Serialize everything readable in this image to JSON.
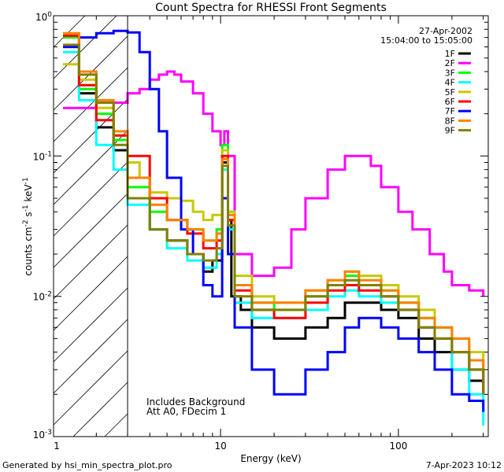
{
  "chart_data": {
    "type": "line",
    "title": "Count Spectra for RHESSI Front Segments",
    "xlabel": "Energy (keV)",
    "ylabel_base": "counts cm",
    "ylabel_exp1": "-2",
    "ylabel_mid": " s",
    "ylabel_exp2": "-1",
    "ylabel_end": " keV",
    "ylabel_exp3": "-1",
    "xscale": "log",
    "yscale": "log",
    "xlim": [
      1.15,
      320
    ],
    "ylim": [
      0.001,
      1.0
    ],
    "x_tick_labels": [
      "1",
      "10",
      "100"
    ],
    "y_tick_labels": [
      {
        "base": "10",
        "exp": "0"
      },
      {
        "base": "10",
        "exp": "-1"
      },
      {
        "base": "10",
        "exp": "-2"
      },
      {
        "base": "10",
        "exp": "-3"
      }
    ],
    "date": "27-Apr-2002",
    "time_range": "15:04:00 to 15:05:00",
    "annotations": [
      "Includes Background",
      "Att A0, FDecim 1"
    ],
    "hatched_region_max_keV": 3,
    "footer_left": "Generated by hsi_min_spectra_plot.pro",
    "footer_right": "7-Apr-2023 10:12",
    "legend_position": "top-right",
    "series": [
      {
        "name": "1F",
        "color": "#000000",
        "x": [
          1.3,
          1.6,
          2.0,
          2.5,
          3.0,
          4.0,
          5.0,
          6.5,
          8.0,
          9.0,
          10.2,
          11.0,
          11.5,
          13.0,
          15.0,
          20.0,
          30.0,
          40.0,
          50.0,
          60.0,
          80.0,
          100.0,
          130.0,
          160.0,
          200.0,
          250.0,
          300.0
        ],
        "values": [
          0.6,
          0.28,
          0.16,
          0.11,
          0.05,
          0.03,
          0.025,
          0.02,
          0.015,
          0.018,
          0.09,
          0.035,
          0.01,
          0.008,
          0.006,
          0.005,
          0.006,
          0.007,
          0.009,
          0.009,
          0.008,
          0.007,
          0.005,
          0.004,
          0.003,
          0.0025,
          0.002
        ]
      },
      {
        "name": "2F",
        "color": "#ff00ff",
        "x": [
          1.3,
          2.0,
          3.0,
          3.5,
          4.0,
          4.5,
          5.0,
          5.5,
          6.0,
          7.0,
          8.0,
          9.0,
          10.0,
          10.5,
          11.0,
          12.0,
          15.0,
          20.0,
          25.0,
          30.0,
          40.0,
          50.0,
          60.0,
          70.0,
          80.0,
          100.0,
          120.0,
          150.0,
          180.0,
          200.0,
          250.0,
          300.0
        ],
        "values": [
          0.22,
          0.24,
          0.28,
          0.3,
          0.35,
          0.38,
          0.4,
          0.38,
          0.34,
          0.28,
          0.2,
          0.15,
          0.12,
          0.15,
          0.1,
          0.02,
          0.014,
          0.016,
          0.03,
          0.05,
          0.08,
          0.1,
          0.1,
          0.085,
          0.06,
          0.04,
          0.03,
          0.02,
          0.015,
          0.012,
          0.011,
          0.01
        ]
      },
      {
        "name": "3F",
        "color": "#00ff00",
        "x": [
          1.3,
          1.6,
          2.0,
          2.5,
          3.0,
          4.0,
          5.0,
          6.5,
          8.0,
          9.5,
          10.2,
          11.0,
          12.0,
          15.0,
          20.0,
          30.0,
          40.0,
          50.0,
          60.0,
          80.0,
          100.0,
          130.0,
          160.0,
          200.0,
          250.0,
          300.0
        ],
        "values": [
          0.7,
          0.3,
          0.2,
          0.13,
          0.06,
          0.04,
          0.035,
          0.03,
          0.025,
          0.03,
          0.12,
          0.04,
          0.012,
          0.009,
          0.008,
          0.01,
          0.012,
          0.014,
          0.012,
          0.011,
          0.009,
          0.007,
          0.006,
          0.004,
          0.003,
          0.0025
        ]
      },
      {
        "name": "4F",
        "color": "#00ffff",
        "x": [
          1.3,
          1.6,
          2.0,
          2.5,
          3.0,
          4.0,
          5.0,
          6.5,
          8.0,
          9.5,
          10.2,
          11.0,
          12.0,
          15.0,
          20.0,
          30.0,
          40.0,
          50.0,
          60.0,
          80.0,
          100.0,
          130.0,
          160.0,
          200.0,
          250.0,
          300.0
        ],
        "values": [
          0.55,
          0.25,
          0.12,
          0.08,
          0.045,
          0.03,
          0.022,
          0.018,
          0.016,
          0.02,
          0.08,
          0.03,
          0.009,
          0.007,
          0.007,
          0.008,
          0.01,
          0.011,
          0.01,
          0.009,
          0.008,
          0.006,
          0.005,
          0.003,
          0.002,
          0.0012
        ]
      },
      {
        "name": "5F",
        "color": "#c8c800",
        "x": [
          1.3,
          1.6,
          2.0,
          2.5,
          3.0,
          3.5,
          4.0,
          5.0,
          6.0,
          7.0,
          8.0,
          9.0,
          10.2,
          11.0,
          12.0,
          15.0,
          20.0,
          30.0,
          40.0,
          50.0,
          60.0,
          80.0,
          100.0,
          130.0,
          160.0,
          200.0,
          250.0,
          300.0
        ],
        "values": [
          0.45,
          0.35,
          0.22,
          0.14,
          0.09,
          0.07,
          0.055,
          0.05,
          0.048,
          0.04,
          0.035,
          0.038,
          0.11,
          0.04,
          0.014,
          0.01,
          0.009,
          0.011,
          0.013,
          0.015,
          0.014,
          0.012,
          0.01,
          0.008,
          0.006,
          0.005,
          0.004,
          0.003
        ]
      },
      {
        "name": "6F",
        "color": "#ff0000",
        "x": [
          1.3,
          1.6,
          2.0,
          2.5,
          3.0,
          4.0,
          5.0,
          6.5,
          8.0,
          9.5,
          10.2,
          11.0,
          12.0,
          15.0,
          20.0,
          30.0,
          40.0,
          50.0,
          60.0,
          80.0,
          100.0,
          130.0,
          160.0,
          200.0,
          250.0,
          300.0
        ],
        "values": [
          0.72,
          0.32,
          0.18,
          0.14,
          0.1,
          0.05,
          0.035,
          0.028,
          0.022,
          0.025,
          0.1,
          0.035,
          0.011,
          0.008,
          0.007,
          0.009,
          0.011,
          0.012,
          0.011,
          0.01,
          0.008,
          0.006,
          0.005,
          0.004,
          0.003,
          0.002
        ]
      },
      {
        "name": "7F",
        "color": "#0000ff",
        "x": [
          1.3,
          1.6,
          2.0,
          2.5,
          3.0,
          3.5,
          4.0,
          4.5,
          5.0,
          6.0,
          7.0,
          8.0,
          9.0,
          10.2,
          11.0,
          12.0,
          15.0,
          20.0,
          30.0,
          40.0,
          50.0,
          60.0,
          80.0,
          100.0,
          130.0,
          160.0,
          200.0,
          250.0,
          300.0
        ],
        "values": [
          0.6,
          0.7,
          0.75,
          0.78,
          0.76,
          0.55,
          0.3,
          0.15,
          0.07,
          0.03,
          0.02,
          0.012,
          0.01,
          0.05,
          0.02,
          0.006,
          0.003,
          0.002,
          0.003,
          0.004,
          0.006,
          0.007,
          0.006,
          0.005,
          0.004,
          0.003,
          0.002,
          0.0018,
          0.0015
        ]
      },
      {
        "name": "8F",
        "color": "#ff8000",
        "x": [
          1.3,
          1.6,
          2.0,
          2.5,
          3.0,
          4.0,
          5.0,
          6.5,
          8.0,
          9.5,
          10.2,
          11.0,
          12.0,
          15.0,
          20.0,
          30.0,
          40.0,
          50.0,
          60.0,
          80.0,
          100.0,
          130.0,
          160.0,
          200.0,
          250.0,
          300.0
        ],
        "values": [
          0.75,
          0.4,
          0.25,
          0.15,
          0.07,
          0.045,
          0.035,
          0.03,
          0.025,
          0.028,
          0.095,
          0.038,
          0.012,
          0.009,
          0.009,
          0.011,
          0.013,
          0.015,
          0.013,
          0.011,
          0.009,
          0.007,
          0.006,
          0.005,
          0.0035,
          0.0025
        ]
      },
      {
        "name": "9F",
        "color": "#808000",
        "x": [
          1.3,
          1.6,
          2.0,
          2.5,
          3.0,
          4.0,
          5.0,
          6.5,
          8.0,
          9.5,
          10.2,
          11.0,
          12.0,
          15.0,
          20.0,
          30.0,
          40.0,
          50.0,
          60.0,
          80.0,
          100.0,
          130.0,
          160.0,
          200.0,
          250.0,
          300.0
        ],
        "values": [
          0.62,
          0.38,
          0.24,
          0.12,
          0.05,
          0.03,
          0.025,
          0.02,
          0.018,
          0.022,
          0.085,
          0.032,
          0.01,
          0.008,
          0.008,
          0.01,
          0.012,
          0.013,
          0.012,
          0.01,
          0.008,
          0.006,
          0.005,
          0.004,
          0.003,
          0.002
        ]
      }
    ]
  }
}
